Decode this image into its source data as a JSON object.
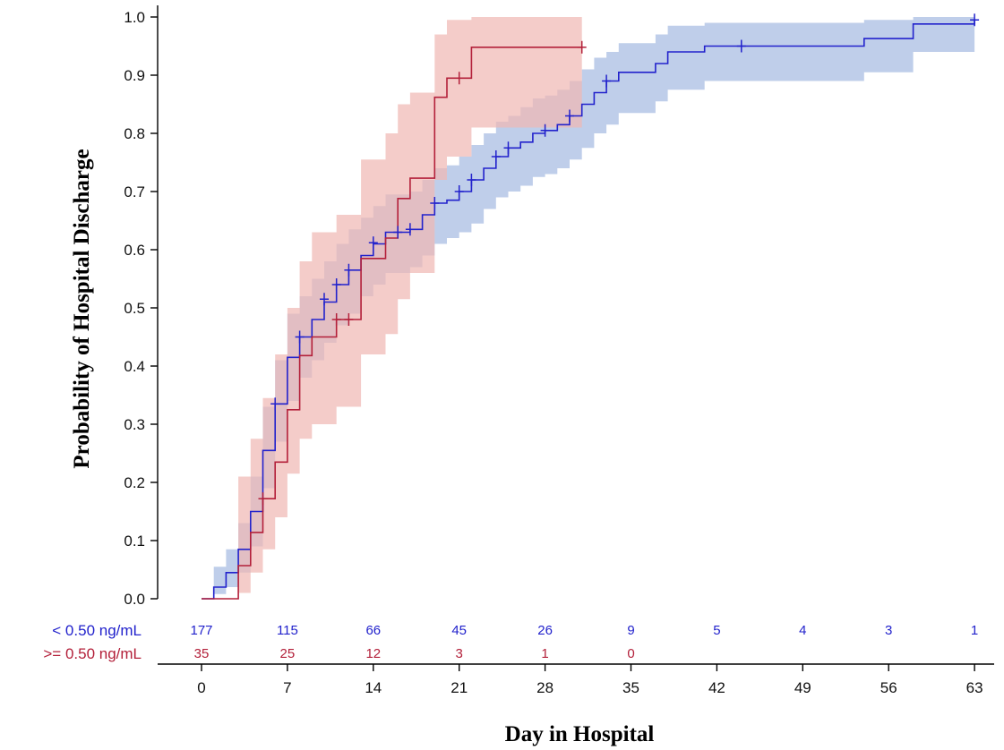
{
  "chart_data": {
    "type": "line",
    "subtype": "kaplan-meier",
    "title": "",
    "xlabel": "Day in Hospital",
    "ylabel": "Probability of Hospital Discharge",
    "xlim": [
      -4,
      65
    ],
    "ylim": [
      0,
      1.0
    ],
    "x_ticks": [
      0,
      7,
      14,
      21,
      28,
      35,
      42,
      49,
      56,
      63
    ],
    "y_ticks": [
      "0.0",
      "0.1",
      "0.2",
      "0.3",
      "0.4",
      "0.5",
      "0.6",
      "0.7",
      "0.8",
      "0.9",
      "1.0"
    ],
    "grid": false,
    "legend": "none",
    "series": [
      {
        "name": "< 0.50 ng/mL",
        "color": "#2222cc",
        "band_color": "#a9bde3",
        "steps": [
          [
            0,
            0
          ],
          [
            1,
            0.02
          ],
          [
            2,
            0.045
          ],
          [
            3,
            0.085
          ],
          [
            4,
            0.15
          ],
          [
            5,
            0.255
          ],
          [
            6,
            0.335
          ],
          [
            7,
            0.415
          ],
          [
            8,
            0.45
          ],
          [
            9,
            0.48
          ],
          [
            10,
            0.51
          ],
          [
            11,
            0.54
          ],
          [
            12,
            0.565
          ],
          [
            13,
            0.59
          ],
          [
            14,
            0.61
          ],
          [
            15,
            0.63
          ],
          [
            17,
            0.635
          ],
          [
            18,
            0.66
          ],
          [
            19,
            0.68
          ],
          [
            20,
            0.685
          ],
          [
            21,
            0.7
          ],
          [
            22,
            0.72
          ],
          [
            23,
            0.74
          ],
          [
            24,
            0.76
          ],
          [
            25,
            0.775
          ],
          [
            26,
            0.785
          ],
          [
            27,
            0.8
          ],
          [
            28,
            0.805
          ],
          [
            29,
            0.815
          ],
          [
            30,
            0.83
          ],
          [
            31,
            0.85
          ],
          [
            32,
            0.87
          ],
          [
            33,
            0.89
          ],
          [
            34,
            0.905
          ],
          [
            37,
            0.92
          ],
          [
            38,
            0.94
          ],
          [
            41,
            0.95
          ],
          [
            54,
            0.963
          ],
          [
            58,
            0.988
          ],
          [
            63,
            0.995
          ]
        ],
        "lower": [
          [
            0,
            0
          ],
          [
            1,
            0.008
          ],
          [
            2,
            0.02
          ],
          [
            3,
            0.045
          ],
          [
            4,
            0.09
          ],
          [
            5,
            0.19
          ],
          [
            6,
            0.27
          ],
          [
            7,
            0.34
          ],
          [
            8,
            0.38
          ],
          [
            9,
            0.41
          ],
          [
            10,
            0.44
          ],
          [
            11,
            0.47
          ],
          [
            12,
            0.49
          ],
          [
            13,
            0.52
          ],
          [
            14,
            0.54
          ],
          [
            15,
            0.56
          ],
          [
            17,
            0.57
          ],
          [
            18,
            0.59
          ],
          [
            19,
            0.61
          ],
          [
            20,
            0.62
          ],
          [
            21,
            0.63
          ],
          [
            22,
            0.645
          ],
          [
            23,
            0.67
          ],
          [
            24,
            0.69
          ],
          [
            25,
            0.7
          ],
          [
            26,
            0.71
          ],
          [
            27,
            0.725
          ],
          [
            28,
            0.73
          ],
          [
            29,
            0.74
          ],
          [
            30,
            0.755
          ],
          [
            31,
            0.775
          ],
          [
            32,
            0.8
          ],
          [
            33,
            0.815
          ],
          [
            34,
            0.835
          ],
          [
            37,
            0.855
          ],
          [
            38,
            0.875
          ],
          [
            41,
            0.89
          ],
          [
            54,
            0.905
          ],
          [
            58,
            0.94
          ],
          [
            63,
            0.943
          ]
        ],
        "upper": [
          [
            0,
            0
          ],
          [
            1,
            0.055
          ],
          [
            2,
            0.085
          ],
          [
            3,
            0.13
          ],
          [
            4,
            0.21
          ],
          [
            5,
            0.33
          ],
          [
            6,
            0.41
          ],
          [
            7,
            0.49
          ],
          [
            8,
            0.52
          ],
          [
            9,
            0.55
          ],
          [
            10,
            0.58
          ],
          [
            11,
            0.61
          ],
          [
            12,
            0.635
          ],
          [
            13,
            0.655
          ],
          [
            14,
            0.675
          ],
          [
            15,
            0.695
          ],
          [
            17,
            0.7
          ],
          [
            18,
            0.72
          ],
          [
            19,
            0.74
          ],
          [
            20,
            0.745
          ],
          [
            21,
            0.76
          ],
          [
            22,
            0.78
          ],
          [
            23,
            0.8
          ],
          [
            24,
            0.82
          ],
          [
            25,
            0.83
          ],
          [
            26,
            0.845
          ],
          [
            27,
            0.86
          ],
          [
            28,
            0.865
          ],
          [
            29,
            0.875
          ],
          [
            30,
            0.89
          ],
          [
            31,
            0.91
          ],
          [
            32,
            0.93
          ],
          [
            33,
            0.94
          ],
          [
            34,
            0.955
          ],
          [
            37,
            0.97
          ],
          [
            38,
            0.985
          ],
          [
            41,
            0.99
          ],
          [
            54,
            0.995
          ],
          [
            58,
            1.0
          ],
          [
            63,
            1.0
          ]
        ],
        "censor_marks": [
          [
            6,
            0.335
          ],
          [
            8,
            0.45
          ],
          [
            10,
            0.515
          ],
          [
            11,
            0.54
          ],
          [
            12,
            0.565
          ],
          [
            14,
            0.612
          ],
          [
            16,
            0.63
          ],
          [
            17,
            0.635
          ],
          [
            19,
            0.68
          ],
          [
            21,
            0.7
          ],
          [
            22,
            0.72
          ],
          [
            24,
            0.76
          ],
          [
            25,
            0.775
          ],
          [
            28,
            0.805
          ],
          [
            30,
            0.83
          ],
          [
            33,
            0.89
          ],
          [
            44,
            0.95
          ],
          [
            63,
            0.995
          ]
        ],
        "at_risk": [
          177,
          115,
          66,
          45,
          26,
          9,
          5,
          4,
          3,
          1
        ]
      },
      {
        "name": ">= 0.50 ng/mL",
        "color": "#b3203a",
        "band_color": "#f0b8b4",
        "steps": [
          [
            0,
            0
          ],
          [
            3,
            0.057
          ],
          [
            4,
            0.114
          ],
          [
            5,
            0.172
          ],
          [
            6,
            0.235
          ],
          [
            7,
            0.325
          ],
          [
            8,
            0.418
          ],
          [
            9,
            0.45
          ],
          [
            11,
            0.48
          ],
          [
            13,
            0.585
          ],
          [
            14,
            0.585
          ],
          [
            15,
            0.62
          ],
          [
            16,
            0.688
          ],
          [
            17,
            0.723
          ],
          [
            19,
            0.862
          ],
          [
            20,
            0.895
          ],
          [
            22,
            0.948
          ],
          [
            31,
            0.948
          ]
        ],
        "lower": [
          [
            0,
            0
          ],
          [
            3,
            0.01
          ],
          [
            4,
            0.045
          ],
          [
            5,
            0.085
          ],
          [
            6,
            0.14
          ],
          [
            7,
            0.215
          ],
          [
            8,
            0.275
          ],
          [
            9,
            0.3
          ],
          [
            11,
            0.33
          ],
          [
            13,
            0.42
          ],
          [
            14,
            0.42
          ],
          [
            15,
            0.455
          ],
          [
            16,
            0.515
          ],
          [
            17,
            0.56
          ],
          [
            19,
            0.72
          ],
          [
            20,
            0.76
          ],
          [
            22,
            0.81
          ],
          [
            31,
            0.81
          ]
        ],
        "upper": [
          [
            0,
            0
          ],
          [
            3,
            0.21
          ],
          [
            4,
            0.275
          ],
          [
            5,
            0.345
          ],
          [
            6,
            0.42
          ],
          [
            7,
            0.5
          ],
          [
            8,
            0.58
          ],
          [
            9,
            0.63
          ],
          [
            11,
            0.66
          ],
          [
            13,
            0.755
          ],
          [
            14,
            0.755
          ],
          [
            15,
            0.8
          ],
          [
            16,
            0.85
          ],
          [
            17,
            0.87
          ],
          [
            19,
            0.97
          ],
          [
            20,
            0.995
          ],
          [
            22,
            1.0
          ],
          [
            31,
            1.0
          ]
        ],
        "censor_marks": [
          [
            5,
            0.172
          ],
          [
            11,
            0.48
          ],
          [
            12,
            0.48
          ],
          [
            21,
            0.895
          ],
          [
            31,
            0.948
          ]
        ],
        "at_risk": [
          35,
          25,
          12,
          3,
          1,
          0
        ]
      }
    ]
  }
}
